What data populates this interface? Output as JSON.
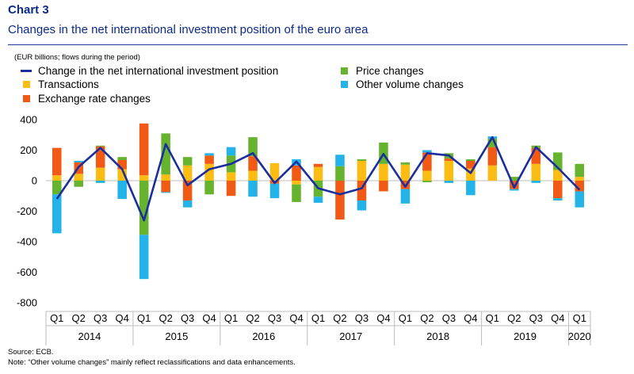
{
  "header": {
    "chart_label": "Chart 3",
    "title": "Changes in the net international investment position of the euro area",
    "units": "(EUR billions; flows during the period)"
  },
  "footer": {
    "source": "Source: ECB.",
    "note": "Note: “Other volume changes” mainly reflect reclassifications and data enhancements."
  },
  "colors": {
    "line": "#1a2e9e",
    "transactions": "#fbbc14",
    "exchange_rate": "#f15a15",
    "price": "#65b32e",
    "other_volume": "#23b3e8"
  },
  "chart_data": {
    "type": "bar",
    "stacked": true,
    "ylim": [
      -800,
      400
    ],
    "yticks": [
      "400",
      "200",
      "0",
      "-200",
      "-400",
      "-600",
      "-800"
    ],
    "grid": false,
    "legend_position": "top",
    "categories": [
      "Q1",
      "Q2",
      "Q3",
      "Q4",
      "Q1",
      "Q2",
      "Q3",
      "Q4",
      "Q1",
      "Q2",
      "Q3",
      "Q4",
      "Q1",
      "Q2",
      "Q3",
      "Q4",
      "Q1",
      "Q2",
      "Q3",
      "Q4",
      "Q1",
      "Q2",
      "Q3",
      "Q4",
      "Q1"
    ],
    "years": [
      {
        "label": "2014",
        "start": 0,
        "end": 3
      },
      {
        "label": "2015",
        "start": 4,
        "end": 7
      },
      {
        "label": "2016",
        "start": 8,
        "end": 11
      },
      {
        "label": "2017",
        "start": 12,
        "end": 15
      },
      {
        "label": "2018",
        "start": 16,
        "end": 19
      },
      {
        "label": "2019",
        "start": 20,
        "end": 23
      },
      {
        "label": "2020",
        "start": 24,
        "end": 24
      }
    ],
    "series": [
      {
        "name": "Transactions",
        "key": "transactions",
        "values": [
          35,
          45,
          85,
          75,
          35,
          40,
          100,
          110,
          55,
          65,
          115,
          -25,
          90,
          0,
          130,
          110,
          105,
          65,
          130,
          80,
          100,
          0,
          110,
          70,
          25
        ]
      },
      {
        "name": "Exchange rate changes",
        "key": "exchange_rate",
        "values": [
          180,
          75,
          140,
          60,
          340,
          -75,
          -130,
          55,
          -100,
          95,
          -20,
          100,
          20,
          -255,
          -130,
          -70,
          -55,
          120,
          15,
          50,
          120,
          -55,
          105,
          -115,
          -70
        ]
      },
      {
        "name": "Price changes",
        "key": "price",
        "values": [
          -90,
          -40,
          5,
          20,
          -355,
          270,
          55,
          -90,
          110,
          125,
          0,
          -115,
          -105,
          95,
          10,
          140,
          15,
          -10,
          35,
          10,
          55,
          25,
          15,
          115,
          85
        ]
      },
      {
        "name": "Other volume changes",
        "key": "other_volume",
        "values": [
          -255,
          10,
          -15,
          -120,
          -290,
          -5,
          -45,
          15,
          55,
          -105,
          -95,
          40,
          -40,
          75,
          -65,
          0,
          -95,
          15,
          -15,
          -95,
          15,
          -10,
          -15,
          -15,
          -105
        ]
      }
    ],
    "line": {
      "name": "Change in the net international investment position",
      "values": [
        -120,
        90,
        215,
        75,
        -260,
        240,
        -30,
        75,
        110,
        180,
        -15,
        125,
        -50,
        -90,
        -50,
        175,
        -40,
        180,
        165,
        50,
        285,
        -45,
        220,
        85,
        -60
      ]
    }
  }
}
